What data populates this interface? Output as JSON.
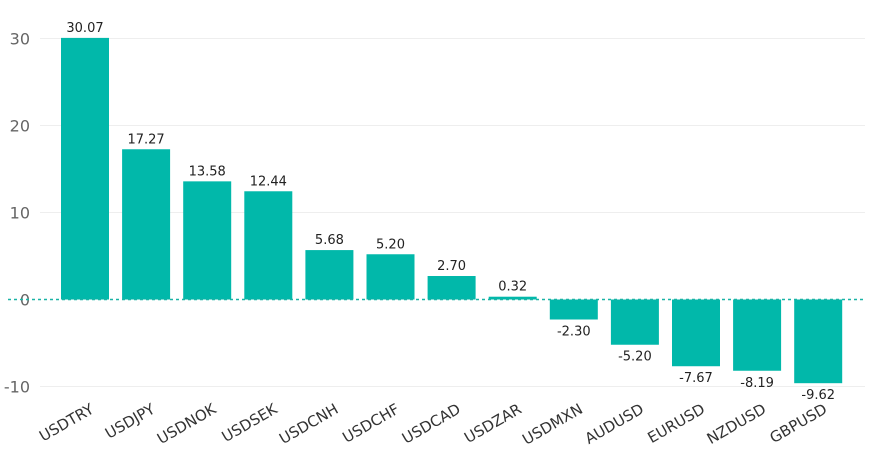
{
  "chart_data": {
    "type": "bar",
    "title": "",
    "xlabel": "",
    "ylabel": "",
    "categories": [
      "USDTRY",
      "USDJPY",
      "USDNOK",
      "USDSEK",
      "USDCNH",
      "USDCHF",
      "USDCAD",
      "USDZAR",
      "USDMXN",
      "AUDUSD",
      "EURUSD",
      "NZDUSD",
      "GBPUSD"
    ],
    "values": [
      30.07,
      17.27,
      13.58,
      12.44,
      5.68,
      5.2,
      2.7,
      0.32,
      -2.3,
      -5.2,
      -7.67,
      -8.19,
      -9.62
    ],
    "value_labels": [
      "30.07",
      "17.27",
      "13.58",
      "12.44",
      "5.68",
      "5.20",
      "2.70",
      "0.32",
      "-2.30",
      "-5.20",
      "-7.67",
      "-8.19",
      "-9.62"
    ],
    "yticks": [
      -10,
      0,
      10,
      20,
      30
    ],
    "ytick_labels": [
      "-10",
      "0",
      "10",
      "20",
      "30"
    ],
    "ylim": [
      -10,
      30
    ],
    "grid": true,
    "legend": "none",
    "bar_color": "#01b8aa",
    "zero_line_color": "#1ab3a6"
  }
}
